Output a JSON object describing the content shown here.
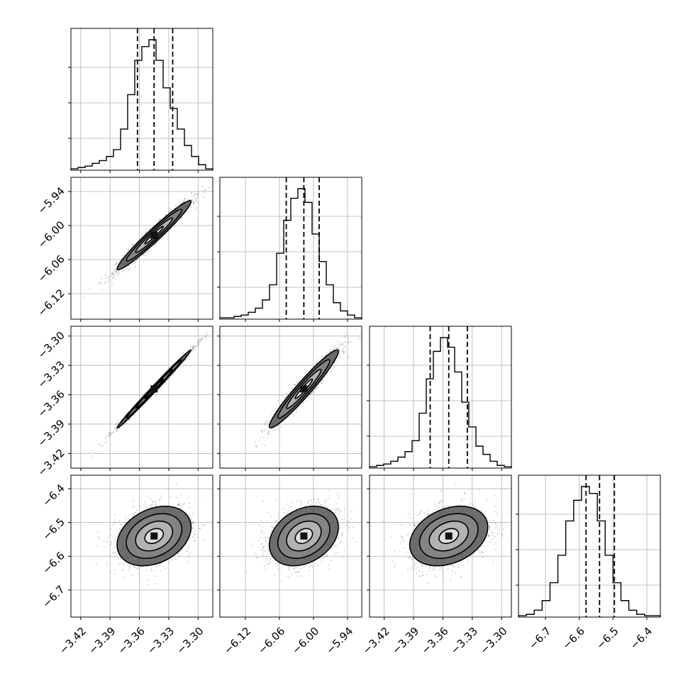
{
  "chart_data": {
    "type": "corner",
    "title": "",
    "grid": true,
    "parameters": [
      {
        "label": "",
        "range": [
          -3.43,
          -3.285
        ],
        "ticks": [
          -3.42,
          -3.39,
          -3.36,
          -3.33,
          -3.3
        ],
        "tick_labels": [
          "−3.42",
          "−3.39",
          "−3.36",
          "−3.33",
          "−3.30"
        ],
        "median": -3.345,
        "quantiles": [
          -3.362,
          -3.345,
          -3.326
        ]
      },
      {
        "label": "",
        "range": [
          -6.165,
          -5.915
        ],
        "ticks": [
          -6.12,
          -6.06,
          -6.0,
          -5.94
        ],
        "tick_labels": [
          "−6.12",
          "−6.06",
          "−6.00",
          "−5.94"
        ],
        "median": -6.017,
        "quantiles": [
          -6.048,
          -6.017,
          -5.99
        ]
      },
      {
        "label": "",
        "range": [
          -3.435,
          -3.29
        ],
        "ticks": [
          -3.42,
          -3.39,
          -3.36,
          -3.33,
          -3.3
        ],
        "tick_labels": [
          "−3.42",
          "−3.39",
          "−3.36",
          "−3.33",
          "−3.30"
        ],
        "median": -3.354,
        "quantiles": [
          -3.373,
          -3.354,
          -3.335
        ]
      },
      {
        "label": "",
        "range": [
          -6.78,
          -6.36
        ],
        "ticks": [
          -6.7,
          -6.6,
          -6.5,
          -6.4
        ],
        "tick_labels": [
          "−6.7",
          "−6.6",
          "−6.5",
          "−6.4"
        ],
        "median": -6.54,
        "quantiles": [
          -6.58,
          -6.54,
          -6.496
        ]
      }
    ],
    "histograms": [
      {
        "counts": [
          1,
          2,
          3,
          5,
          7,
          10,
          15,
          30,
          55,
          80,
          90,
          95,
          80,
          60,
          45,
          30,
          18,
          10,
          4,
          1
        ]
      },
      {
        "counts": [
          1,
          1,
          2,
          3,
          5,
          8,
          14,
          25,
          48,
          72,
          88,
          95,
          85,
          62,
          42,
          25,
          12,
          6,
          3,
          1
        ]
      },
      {
        "counts": [
          1,
          2,
          3,
          5,
          8,
          12,
          20,
          40,
          65,
          85,
          95,
          88,
          70,
          48,
          30,
          16,
          10,
          5,
          2,
          1
        ]
      },
      {
        "counts": [
          1,
          2,
          5,
          12,
          25,
          45,
          70,
          85,
          95,
          90,
          70,
          45,
          25,
          12,
          5,
          2,
          1,
          1
        ]
      }
    ],
    "correlations": [
      [
        1,
        0.97,
        0.995,
        0.3
      ],
      [
        0.97,
        1,
        0.96,
        0.3
      ],
      [
        0.995,
        0.96,
        1,
        0.3
      ],
      [
        0.3,
        0.3,
        0.3,
        1
      ]
    ],
    "contour_levels_sigma": [
      0.5,
      1.0,
      1.5,
      2.0
    ]
  }
}
